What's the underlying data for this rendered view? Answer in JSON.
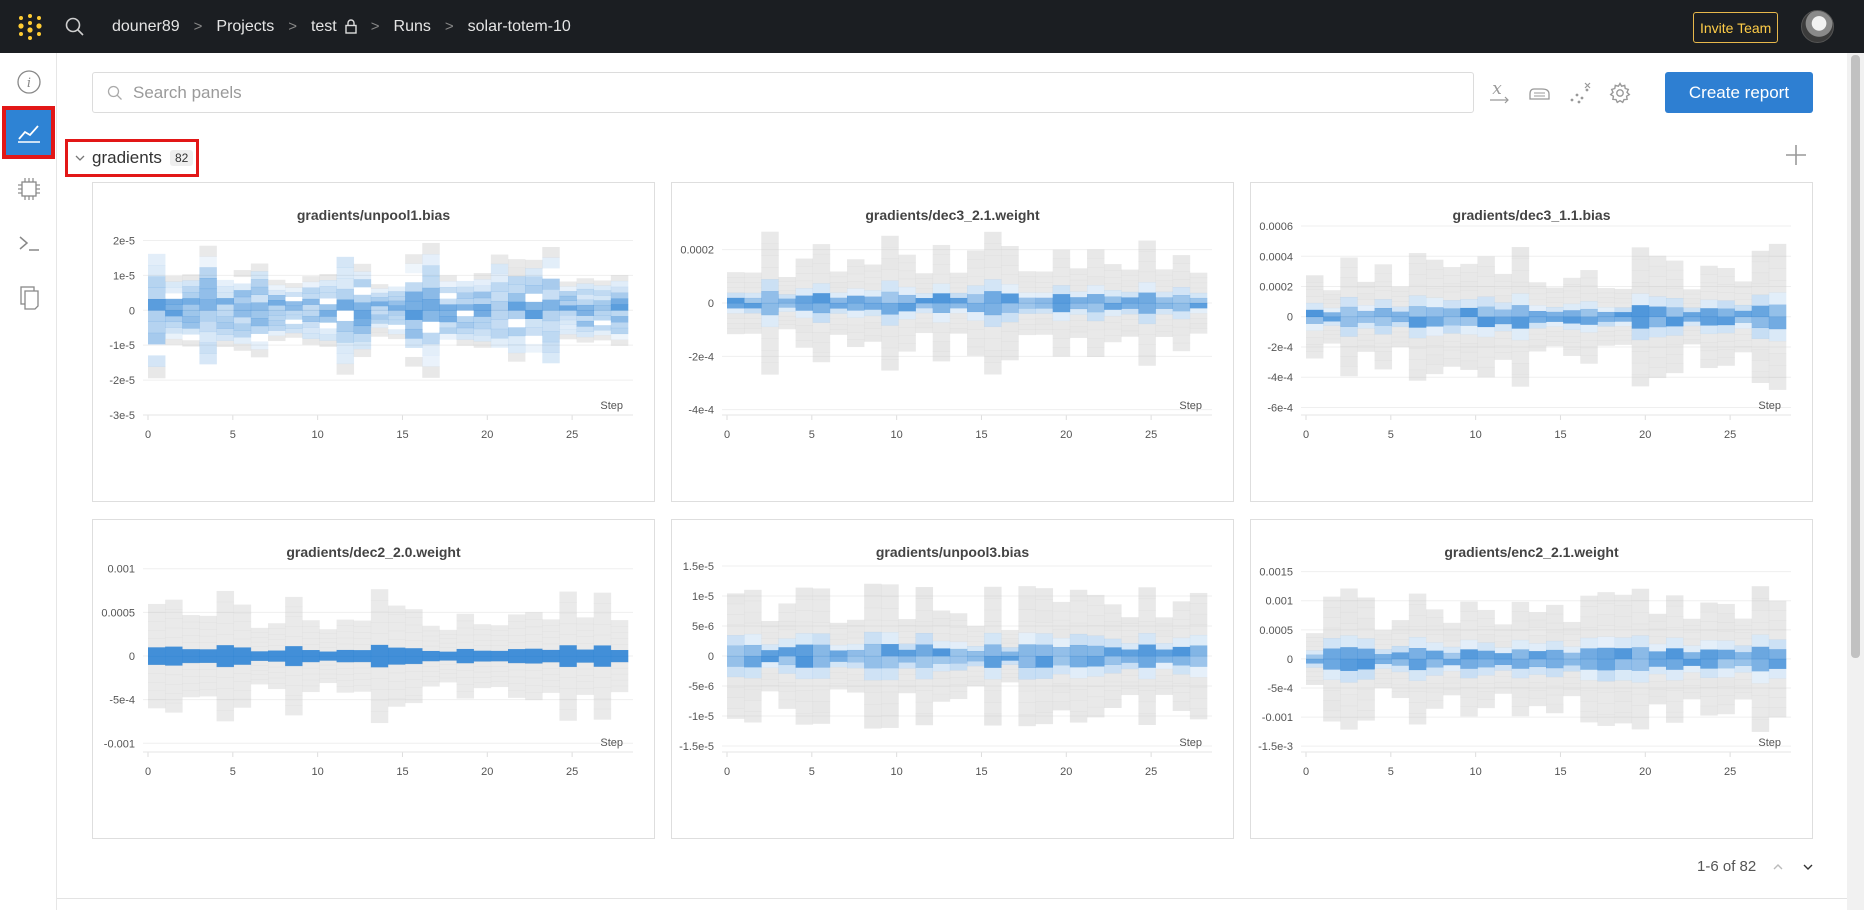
{
  "topbar": {
    "breadcrumbs": [
      "douner89",
      "Projects",
      "test",
      "Runs",
      "solar-totem-10"
    ],
    "invite_label": "Invite Team",
    "logo_color": "#ffcc33"
  },
  "sidebar": {
    "items": [
      {
        "name": "info-icon"
      },
      {
        "name": "chart-icon",
        "active": true
      },
      {
        "name": "chip-icon"
      },
      {
        "name": "terminal-icon"
      },
      {
        "name": "files-icon"
      }
    ]
  },
  "toolbar": {
    "search_placeholder": "Search panels",
    "create_report_label": "Create report",
    "accent": "#2e7fd2"
  },
  "section": {
    "name": "gradients",
    "count": "82"
  },
  "panels": [
    {
      "title": "gradients/unpool1.bias",
      "y_ticks": [
        {
          "label": "2e-5",
          "v": 2
        },
        {
          "label": "1e-5",
          "v": 1
        },
        {
          "label": "0",
          "v": 0
        },
        {
          "label": "-1e-5",
          "v": -1
        },
        {
          "label": "-2e-5",
          "v": -2
        },
        {
          "label": "-3e-5",
          "v": -3
        }
      ],
      "y_range": [
        -3,
        2.5
      ],
      "spread": 1.6,
      "center": 0,
      "style": "wide",
      "x_ticks": [
        "0",
        "5",
        "10",
        "15",
        "20",
        "25"
      ],
      "x_label": "Step"
    },
    {
      "title": "gradients/dec3_2.1.weight",
      "y_ticks": [
        {
          "label": "0.0002",
          "v": 2
        },
        {
          "label": "0",
          "v": 0
        },
        {
          "label": "-2e-4",
          "v": -2
        },
        {
          "label": "-4e-4",
          "v": -4
        }
      ],
      "y_range": [
        -4.2,
        3.0
      ],
      "spread": 2.4,
      "center": 0,
      "style": "narrow",
      "x_ticks": [
        "0",
        "5",
        "10",
        "15",
        "20",
        "25"
      ],
      "x_label": "Step"
    },
    {
      "title": "gradients/dec3_1.1.bias",
      "y_ticks": [
        {
          "label": "0.0006",
          "v": 6
        },
        {
          "label": "0.0004",
          "v": 4
        },
        {
          "label": "0.0002",
          "v": 2
        },
        {
          "label": "0",
          "v": 0
        },
        {
          "label": "-2e-4",
          "v": -2
        },
        {
          "label": "-4e-4",
          "v": -4
        },
        {
          "label": "-6e-4",
          "v": -6
        }
      ],
      "y_range": [
        -6.5,
        6.2
      ],
      "spread": 5.5,
      "center": 0,
      "style": "narrow",
      "x_ticks": [
        "0",
        "5",
        "10",
        "15",
        "20",
        "25"
      ],
      "x_label": "Step"
    },
    {
      "title": "gradients/dec2_2.0.weight",
      "y_ticks": [
        {
          "label": "0.001",
          "v": 10
        },
        {
          "label": "0.0005",
          "v": 5
        },
        {
          "label": "0",
          "v": 0
        },
        {
          "label": "-5e-4",
          "v": -5
        },
        {
          "label": "-0.001",
          "v": -10
        }
      ],
      "y_range": [
        -11,
        11
      ],
      "spread": 8.5,
      "center": 0,
      "style": "line",
      "x_ticks": [
        "0",
        "5",
        "10",
        "15",
        "20",
        "25"
      ],
      "x_label": "Step"
    },
    {
      "title": "gradients/unpool3.bias",
      "y_ticks": [
        {
          "label": "1.5e-5",
          "v": 15
        },
        {
          "label": "1e-5",
          "v": 10
        },
        {
          "label": "5e-6",
          "v": 5
        },
        {
          "label": "0",
          "v": 0
        },
        {
          "label": "-5e-6",
          "v": -5
        },
        {
          "label": "-1e-5",
          "v": -10
        },
        {
          "label": "-1.5e-5",
          "v": -15
        }
      ],
      "y_range": [
        -16,
        16
      ],
      "spread": 10,
      "center": 0,
      "style": "narrow",
      "x_ticks": [
        "0",
        "5",
        "10",
        "15",
        "20",
        "25"
      ],
      "x_label": "Step"
    },
    {
      "title": "gradients/enc2_2.1.weight",
      "y_ticks": [
        {
          "label": "0.0015",
          "v": 15
        },
        {
          "label": "0.001",
          "v": 10
        },
        {
          "label": "0.0005",
          "v": 5
        },
        {
          "label": "0",
          "v": 0
        },
        {
          "label": "-5e-4",
          "v": -5
        },
        {
          "label": "-0.001",
          "v": -10
        },
        {
          "label": "-1.5e-3",
          "v": -15
        }
      ],
      "y_range": [
        -16,
        17
      ],
      "spread": 8,
      "center": 0,
      "style": "narrow",
      "x_ticks": [
        "0",
        "5",
        "10",
        "15",
        "20",
        "25"
      ],
      "x_label": "Step"
    }
  ],
  "pager": {
    "label": "1-6 of 82"
  }
}
